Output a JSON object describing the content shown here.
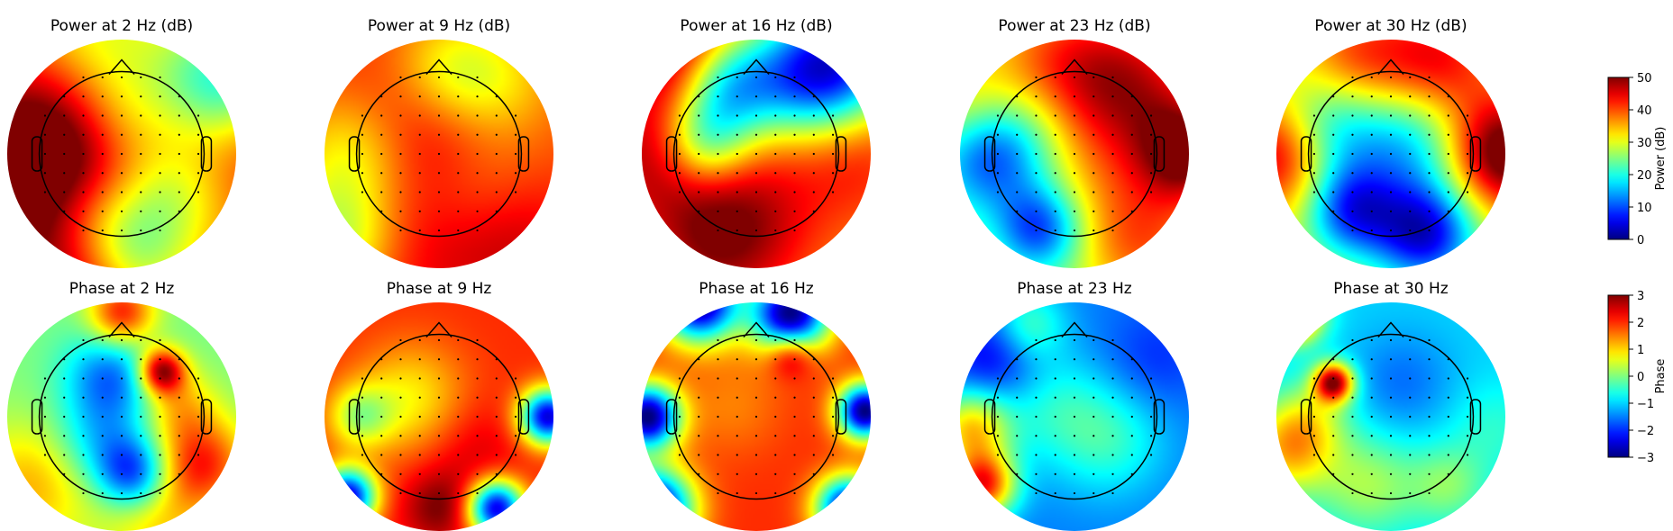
{
  "chart_data": {
    "type": "heatmap",
    "kind": "eeg-topomap-grid",
    "colormap": "jet",
    "rows": [
      {
        "name": "power",
        "titles": [
          "Power at 2 Hz (dB)",
          "Power at 9 Hz (dB)",
          "Power at 16 Hz (dB)",
          "Power at 23 Hz (dB)",
          "Power at 30 Hz (dB)"
        ],
        "frequencies_hz": [
          2,
          9,
          16,
          23,
          30
        ],
        "base_level": [
          38,
          40,
          36,
          26,
          30
        ],
        "colorbar": {
          "label": "Power (dB)",
          "min": 0,
          "max": 50,
          "ticks": [
            "50",
            "40",
            "30",
            "20",
            "10",
            "0"
          ]
        },
        "blobs": [
          [
            [
              -0.5,
              0.25,
              10,
              0.28
            ],
            [
              0.1,
              -0.1,
              8,
              0.3
            ],
            [
              -0.95,
              -0.3,
              15,
              0.3
            ],
            [
              -0.25,
              -0.6,
              -14,
              0.16
            ],
            [
              0.1,
              -0.9,
              -14,
              0.13
            ],
            [
              0.45,
              -0.3,
              -14,
              0.14
            ],
            [
              0.0,
              0.3,
              -10,
              0.12
            ],
            [
              0.85,
              0.6,
              -20,
              0.16
            ],
            [
              -0.2,
              0.95,
              -10,
              0.2
            ],
            [
              -0.3,
              -1.0,
              14,
              0.2
            ],
            [
              0.9,
              0.05,
              6,
              0.2
            ]
          ],
          [
            [
              -0.05,
              0.25,
              12,
              0.28
            ],
            [
              -0.7,
              0.0,
              -12,
              0.16
            ],
            [
              0.3,
              -0.3,
              -10,
              0.2
            ],
            [
              0.05,
              0.7,
              -12,
              0.14
            ],
            [
              -0.3,
              -0.7,
              6,
              0.3
            ],
            [
              0.5,
              0.6,
              -8,
              0.15
            ],
            [
              0.6,
              -0.7,
              8,
              0.2
            ],
            [
              -0.85,
              -0.75,
              -14,
              0.14
            ]
          ],
          [
            [
              -0.7,
              0.9,
              14,
              0.16
            ],
            [
              0.7,
              0.8,
              -26,
              0.16
            ],
            [
              -0.25,
              0.6,
              -20,
              0.1
            ],
            [
              -0.45,
              0.1,
              -16,
              0.08
            ],
            [
              0.35,
              0.6,
              -12,
              0.14
            ],
            [
              -0.3,
              -0.7,
              14,
              0.22
            ],
            [
              -0.95,
              0.0,
              10,
              0.15
            ],
            [
              0.9,
              0.0,
              6,
              0.15
            ],
            [
              0.2,
              -0.1,
              4,
              0.3
            ]
          ],
          [
            [
              -0.75,
              0.0,
              -18,
              0.12
            ],
            [
              -0.3,
              -0.65,
              -18,
              0.07
            ],
            [
              0.5,
              0.6,
              18,
              0.22
            ],
            [
              -0.2,
              0.8,
              12,
              0.2
            ],
            [
              1.0,
              0.0,
              22,
              0.1
            ],
            [
              -0.9,
              0.35,
              10,
              0.12
            ],
            [
              0.6,
              -0.8,
              12,
              0.15
            ],
            [
              0.2,
              -0.2,
              6,
              0.2
            ],
            [
              -0.5,
              0.3,
              -6,
              0.15
            ]
          ],
          [
            [
              -0.6,
              0.2,
              -14,
              0.12
            ],
            [
              0.2,
              0.15,
              -10,
              0.12
            ],
            [
              -0.35,
              -0.5,
              -18,
              0.08
            ],
            [
              0.3,
              -0.7,
              -24,
              0.1
            ],
            [
              -0.95,
              0.0,
              20,
              0.12
            ],
            [
              1.0,
              0.0,
              24,
              0.12
            ],
            [
              0.4,
              0.8,
              14,
              0.14
            ],
            [
              -0.3,
              0.85,
              10,
              0.12
            ],
            [
              -0.1,
              -0.2,
              -6,
              0.2
            ]
          ]
        ]
      },
      {
        "name": "phase",
        "titles": [
          "Phase at 2 Hz",
          "Phase at 9 Hz",
          "Phase at 16 Hz",
          "Phase at 23 Hz",
          "Phase at 30 Hz"
        ],
        "frequencies_hz": [
          2,
          9,
          16,
          23,
          30
        ],
        "base_level": [
          0.0,
          2.0,
          2.0,
          -1.5,
          -1.0
        ],
        "colorbar": {
          "label": "Phase",
          "min": -3,
          "max": 3,
          "ticks": [
            "3",
            "2",
            "1",
            "0",
            "−1",
            "−2",
            "−3"
          ]
        },
        "blobs": [
          [
            [
              -0.1,
              0.35,
              -1.6,
              0.08
            ],
            [
              0.35,
              0.4,
              3.0,
              0.02
            ],
            [
              0.1,
              -0.5,
              -2.2,
              0.05
            ],
            [
              0.0,
              0.9,
              2.2,
              0.04
            ],
            [
              0.7,
              -0.4,
              2.0,
              0.08
            ],
            [
              -0.8,
              -0.6,
              1.2,
              0.15
            ],
            [
              0.5,
              0.1,
              1.0,
              0.05
            ],
            [
              -0.2,
              -0.2,
              -1.0,
              0.08
            ],
            [
              0.3,
              -0.9,
              1.0,
              0.12
            ]
          ],
          [
            [
              -0.25,
              0.15,
              -1.2,
              0.12
            ],
            [
              -0.7,
              0.0,
              -1.5,
              0.04
            ],
            [
              0.5,
              -0.8,
              -4.5,
              0.03
            ],
            [
              -0.8,
              -0.7,
              -4.5,
              0.03
            ],
            [
              0.95,
              0.0,
              -4.5,
              0.03
            ],
            [
              0.0,
              -0.8,
              1.0,
              0.05
            ],
            [
              0.3,
              -0.3,
              0.5,
              0.1
            ]
          ],
          [
            [
              -0.5,
              1.0,
              -5.0,
              0.06
            ],
            [
              0.3,
              0.9,
              -5.0,
              0.06
            ],
            [
              -0.95,
              0.0,
              -5.0,
              0.04
            ],
            [
              0.95,
              0.05,
              -5.0,
              0.03
            ],
            [
              -0.9,
              -0.8,
              -5.0,
              0.06
            ],
            [
              0.8,
              -0.8,
              -4.5,
              0.04
            ],
            [
              0.3,
              0.55,
              1.5,
              0.02
            ],
            [
              -0.2,
              0.1,
              -0.5,
              0.1
            ]
          ],
          [
            [
              -0.8,
              -0.6,
              3.5,
              0.04
            ],
            [
              -0.7,
              0.5,
              -1.0,
              0.08
            ],
            [
              0.3,
              -0.2,
              1.0,
              0.12
            ],
            [
              -0.2,
              0.1,
              0.8,
              0.12
            ],
            [
              -0.4,
              0.8,
              1.2,
              0.05
            ],
            [
              0.7,
              0.5,
              -0.5,
              0.1
            ],
            [
              -0.9,
              -0.1,
              2.5,
              0.06
            ]
          ],
          [
            [
              -0.5,
              0.3,
              3.8,
              0.015
            ],
            [
              -0.85,
              0.9,
              3.8,
              0.03
            ],
            [
              -0.9,
              -0.3,
              2.0,
              0.08
            ],
            [
              -0.2,
              -0.6,
              1.2,
              0.1
            ],
            [
              0.5,
              -0.6,
              1.0,
              0.06
            ],
            [
              0.9,
              -0.1,
              0.5,
              0.08
            ],
            [
              0.1,
              0.3,
              -0.6,
              0.1
            ],
            [
              -0.7,
              0.0,
              1.0,
              0.06
            ]
          ]
        ]
      }
    ],
    "sensor_grid": "regular, ~9x9 inside head outline",
    "legend": "colorbars at right"
  }
}
